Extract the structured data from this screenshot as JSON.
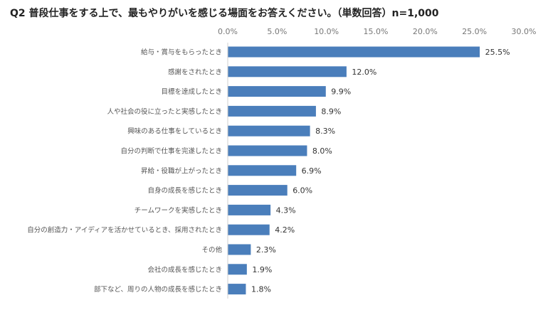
{
  "chart_data": {
    "type": "bar",
    "orientation": "horizontal",
    "title": "Q2 普段仕事をする上で、最もやりがいを感じる場面をお答えください。（単数回答）n=1,000",
    "xlabel": "",
    "ylabel": "",
    "xlim": [
      0,
      30
    ],
    "xticks": [
      "0.0%",
      "5.0%",
      "10.0%",
      "15.0%",
      "20.0%",
      "25.0%",
      "30.0%"
    ],
    "grid": false,
    "color": "#4a7ebb",
    "categories": [
      "給与・賞与をもらったとき",
      "感謝をされたとき",
      "目標を達成したとき",
      "人や社会の役に立ったと実感したとき",
      "興味のある仕事をしているとき",
      "自分の判断で仕事を完遂したとき",
      "昇給・役職が上がったとき",
      "自身の成長を感じたとき",
      "チームワークを実感したとき",
      "自分の創造力・アイディアを活かせているとき、採用されたとき",
      "その他",
      "会社の成長を感じたとき",
      "部下など、周りの人物の成長を感じたとき"
    ],
    "values": [
      25.5,
      12.0,
      9.9,
      8.9,
      8.3,
      8.0,
      6.9,
      6.0,
      4.3,
      4.2,
      2.3,
      1.9,
      1.8
    ],
    "value_labels": [
      "25.5%",
      "12.0%",
      "9.9%",
      "8.9%",
      "8.3%",
      "8.0%",
      "6.9%",
      "6.0%",
      "4.3%",
      "4.2%",
      "2.3%",
      "1.9%",
      "1.8%"
    ]
  }
}
